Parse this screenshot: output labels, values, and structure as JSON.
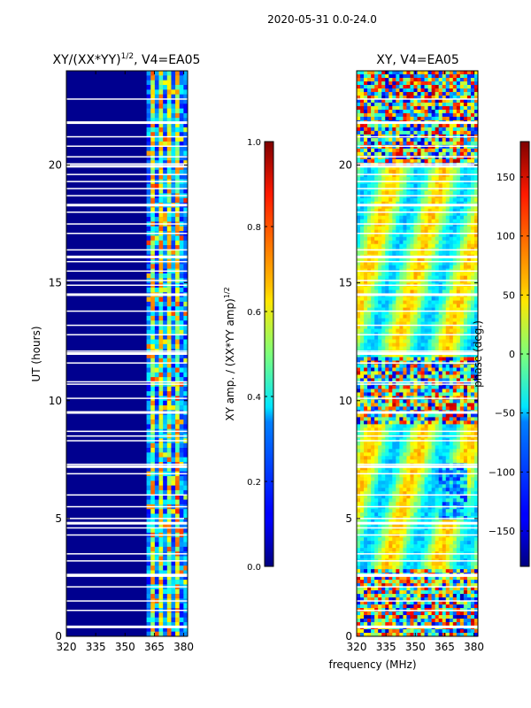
{
  "suptitle": "2020-05-31 0.0-24.0",
  "xlabel": "frequency (MHz)",
  "chart_data": [
    {
      "type": "heatmap",
      "title_main": "XY/(XX*YY)",
      "title_sup": "1/2",
      "title_rest": ", V4=EA05",
      "ylabel": "UT (hours)",
      "xlim": [
        320,
        382
      ],
      "ylim": [
        0,
        24
      ],
      "xticks": [
        320,
        335,
        350,
        365,
        380
      ],
      "yticks": [
        0,
        5,
        10,
        15,
        20
      ],
      "colorbar": {
        "label_main": "XY amp. / (XX*YY amp)",
        "label_sup": "1/2",
        "range": [
          0.0,
          1.0
        ],
        "ticks": [
          "0.0",
          "0.2",
          "0.4",
          "0.6",
          "0.8",
          "1.0"
        ],
        "tick_values": [
          0.0,
          0.2,
          0.4,
          0.6,
          0.8,
          1.0
        ],
        "colormap": "jet"
      },
      "note": "Normalized XY amplitude is low (~0.05) across 320-360 MHz; higher values (~0.3-0.8) in channels 360-382 MHz; white rows are flagged times."
    },
    {
      "type": "heatmap",
      "title": "XY, V4=EA05",
      "ylabel": "",
      "xlim": [
        320,
        382
      ],
      "ylim": [
        0,
        24
      ],
      "xticks": [
        320,
        335,
        350,
        365,
        380
      ],
      "yticks": [
        0,
        5,
        10,
        15,
        20
      ],
      "colorbar": {
        "label": "phase (deg.)",
        "range": [
          -180,
          180
        ],
        "ticks": [
          "−150",
          "−100",
          "−50",
          "0",
          "50",
          "100",
          "150"
        ],
        "tick_values": [
          -150,
          -100,
          -50,
          0,
          50,
          100,
          150
        ],
        "colormap": "jet"
      },
      "note": "XY phase mostly between -50 and 50 deg with noisy patches spanning the full range; white rows are flagged times."
    }
  ],
  "colors": {
    "background": "#ffffff",
    "flag": "#ffffff",
    "axis": "#000000"
  }
}
